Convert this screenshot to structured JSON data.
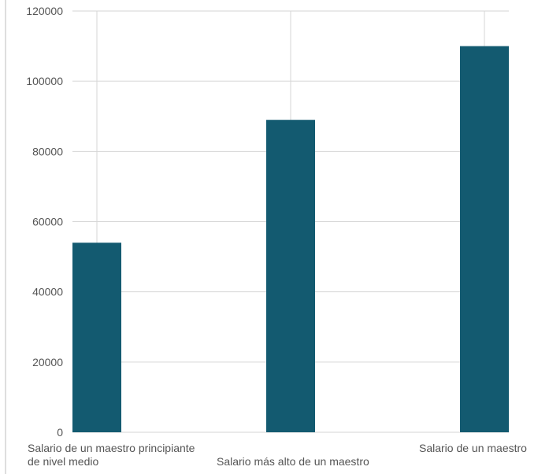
{
  "chart_data": {
    "type": "bar",
    "categories": [
      [
        "Salario de un maestro principiante",
        "de nivel medio"
      ],
      [
        "Salario más alto de un maestro"
      ],
      [
        "Salario de un maestro"
      ]
    ],
    "values": [
      54000,
      89000,
      110000
    ],
    "ylim": [
      0,
      120000
    ],
    "yticks": [
      0,
      20000,
      40000,
      60000,
      80000,
      100000,
      120000
    ],
    "grid": true,
    "colors": {
      "bar": "#135a70",
      "grid": "#d6d6d6",
      "axis": "#bdbdbd",
      "text": "#555555"
    }
  }
}
